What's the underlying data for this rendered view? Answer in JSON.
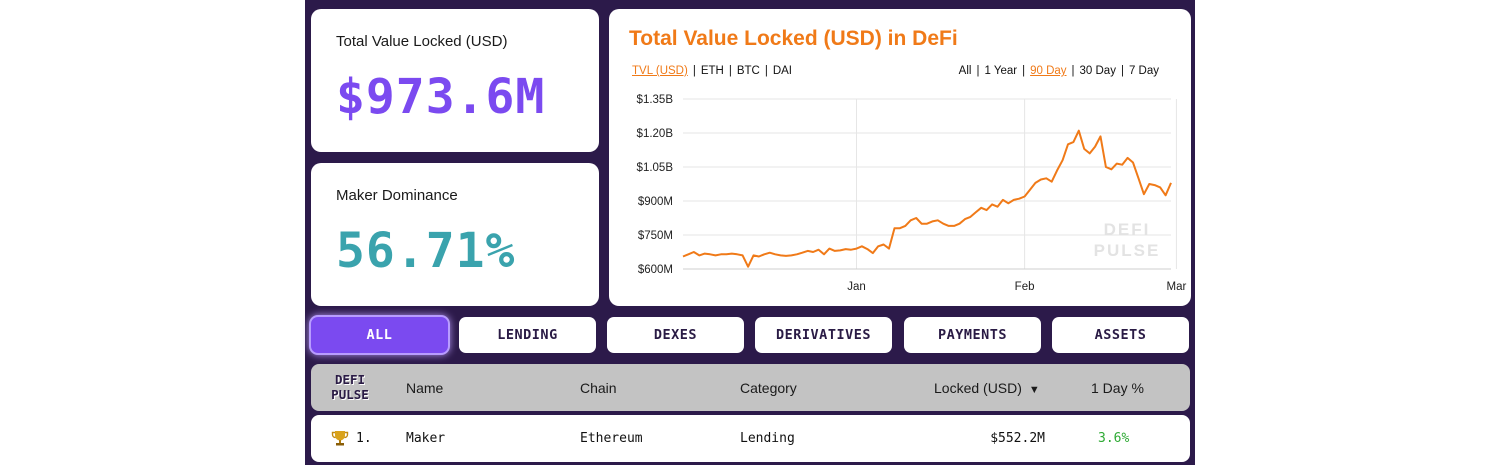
{
  "stats": {
    "tvl": {
      "label": "Total Value Locked (USD)",
      "value": "$973.6M",
      "color": "#7b4af0"
    },
    "dominance": {
      "label": "Maker Dominance",
      "value": "56.71%",
      "color": "#3aa3ad"
    }
  },
  "chart": {
    "title": "Total Value Locked (USD) in DeFi",
    "metric_options": [
      "TVL (USD)",
      "ETH",
      "BTC",
      "DAI"
    ],
    "metric_selected": "TVL (USD)",
    "range_options": [
      "All",
      "1 Year",
      "90 Day",
      "30 Day",
      "7 Day"
    ],
    "range_selected": "90 Day",
    "watermark": [
      "DEFI",
      "PULSE"
    ]
  },
  "chart_data": {
    "type": "line",
    "title": "Total Value Locked (USD) in DeFi",
    "ylabel": "",
    "xlabel": "",
    "ylim": [
      600,
      1350
    ],
    "yticks": [
      "$1.35B",
      "$1.20B",
      "$1.05B",
      "$900M",
      "$750M",
      "$600M"
    ],
    "ytick_values": [
      1350,
      1200,
      1050,
      900,
      750,
      600
    ],
    "xticks": [
      "Jan",
      "Feb",
      "Mar"
    ],
    "xtick_days": [
      32,
      63,
      91
    ],
    "grid": true,
    "line_color": "#f07a18",
    "series": [
      {
        "values": [
          655,
          665,
          675,
          660,
          668,
          665,
          660,
          665,
          665,
          668,
          665,
          660,
          610,
          660,
          655,
          665,
          672,
          665,
          660,
          658,
          660,
          665,
          672,
          680,
          675,
          685,
          665,
          690,
          680,
          682,
          688,
          685,
          690,
          700,
          688,
          670,
          700,
          708,
          690,
          780,
          780,
          790,
          815,
          825,
          800,
          800,
          810,
          815,
          800,
          790,
          790,
          800,
          820,
          830,
          850,
          870,
          860,
          885,
          875,
          905,
          890,
          905,
          910,
          920,
          950,
          980,
          995,
          1000,
          985,
          1035,
          1080,
          1150,
          1160,
          1210,
          1130,
          1110,
          1140,
          1185,
          1050,
          1040,
          1065,
          1060,
          1090,
          1070,
          1000,
          930,
          975,
          970,
          960,
          925,
          980
        ]
      }
    ]
  },
  "tabs": [
    "ALL",
    "LENDING",
    "DEXES",
    "DERIVATIVES",
    "PAYMENTS",
    "ASSETS"
  ],
  "table": {
    "logo": [
      "DEFI",
      "PULSE"
    ],
    "headers": {
      "name": "Name",
      "chain": "Chain",
      "category": "Category",
      "locked": "Locked (USD)",
      "day": "1 Day %"
    },
    "sort_indicator": "▼",
    "rows": [
      {
        "rank": "1.",
        "name": "Maker",
        "chain": "Ethereum",
        "category": "Lending",
        "locked": "$552.2M",
        "day": "3.6%",
        "icon": "trophy-icon"
      }
    ]
  },
  "colors": {
    "accent": "#f07a18",
    "brand": "#7b4af0",
    "background": "#2c1a4a",
    "positive": "#2eaa34"
  }
}
